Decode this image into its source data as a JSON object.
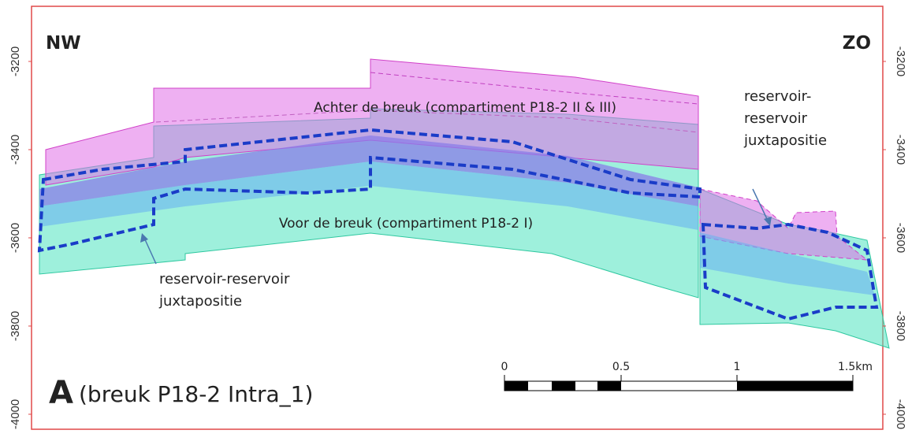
{
  "corners": {
    "left": "NW",
    "right": "ZO"
  },
  "depth_axis": {
    "ylim": [
      -3075,
      -4034
    ],
    "ticks": [
      -3200,
      -3400,
      -3600,
      -3800,
      -4000
    ]
  },
  "labels": {
    "behind": "Achter de breuk (compartiment P18-2 II & III)",
    "front": "Voor de breuk (compartiment P18-2 I)"
  },
  "annotations": {
    "left": [
      "reservoir-reservoir",
      "juxtapositie"
    ],
    "right": [
      "reservoir-",
      "reservoir",
      "juxtapositie"
    ]
  },
  "panel": {
    "letter": "A",
    "caption": "(breuk P18-2 Intra_1)"
  },
  "scale_bar": {
    "labels": [
      "0",
      "0.5",
      "1",
      "1.5km"
    ]
  }
}
